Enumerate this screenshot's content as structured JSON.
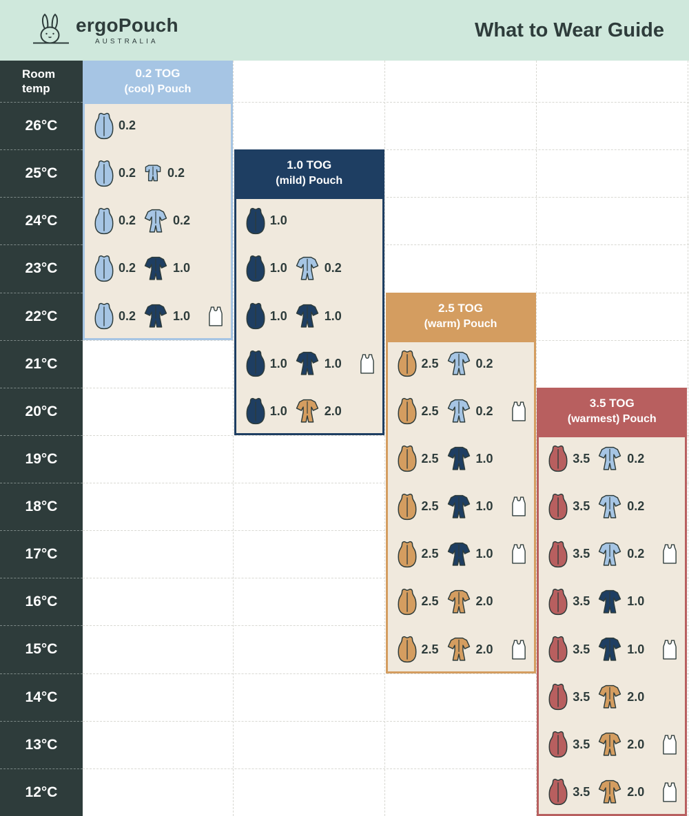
{
  "header": {
    "brand": "ergoPouch",
    "brand_sub": "AUSTRALIA",
    "title": "What to Wear Guide"
  },
  "palette": {
    "mint": "#cfe8dc",
    "dark": "#2e3c3b",
    "beige": "#f0e9dd",
    "lightblue": "#a6c5e4",
    "navy": "#1e3e62",
    "tan": "#d49d60",
    "red": "#b85f5f",
    "white": "#ffffff",
    "grid": "#d8d8d2"
  },
  "chart_data": {
    "type": "table",
    "title": "What to Wear Guide",
    "row_header": "Room temp",
    "temps": [
      "26°C",
      "25°C",
      "24°C",
      "23°C",
      "22°C",
      "21°C",
      "20°C",
      "19°C",
      "18°C",
      "17°C",
      "16°C",
      "15°C",
      "14°C",
      "13°C",
      "12°C"
    ],
    "panels": [
      {
        "name": "0.2 TOG (cool) Pouch",
        "title_line1": "0.2 TOG",
        "title_line2": "(cool) Pouch",
        "color_key": "lightblue",
        "rows": [
          {
            "temp": "26°C",
            "items": [
              {
                "icon": "sleep-bag",
                "color": "lightblue",
                "tog": "0.2"
              }
            ]
          },
          {
            "temp": "25°C",
            "items": [
              {
                "icon": "sleep-bag",
                "color": "lightblue",
                "tog": "0.2"
              },
              {
                "icon": "romper",
                "color": "lightblue",
                "tog": "0.2"
              }
            ]
          },
          {
            "temp": "24°C",
            "items": [
              {
                "icon": "sleep-bag",
                "color": "lightblue",
                "tog": "0.2"
              },
              {
                "icon": "onesie",
                "color": "lightblue",
                "tog": "0.2"
              }
            ]
          },
          {
            "temp": "23°C",
            "items": [
              {
                "icon": "sleep-bag",
                "color": "lightblue",
                "tog": "0.2"
              },
              {
                "icon": "onesie",
                "color": "navy",
                "tog": "1.0"
              }
            ]
          },
          {
            "temp": "22°C",
            "items": [
              {
                "icon": "sleep-bag",
                "color": "lightblue",
                "tog": "0.2"
              },
              {
                "icon": "onesie",
                "color": "navy",
                "tog": "1.0"
              },
              {
                "icon": "singlet",
                "color": "white"
              }
            ]
          }
        ]
      },
      {
        "name": "1.0 TOG (mild) Pouch",
        "title_line1": "1.0 TOG",
        "title_line2": "(mild) Pouch",
        "color_key": "navy",
        "rows": [
          {
            "temp": "24°C",
            "items": [
              {
                "icon": "sleep-bag",
                "color": "navy",
                "tog": "1.0"
              }
            ]
          },
          {
            "temp": "23°C",
            "items": [
              {
                "icon": "sleep-bag",
                "color": "navy",
                "tog": "1.0"
              },
              {
                "icon": "onesie",
                "color": "lightblue",
                "tog": "0.2"
              }
            ]
          },
          {
            "temp": "22°C",
            "items": [
              {
                "icon": "sleep-bag",
                "color": "navy",
                "tog": "1.0"
              },
              {
                "icon": "onesie",
                "color": "navy",
                "tog": "1.0"
              }
            ]
          },
          {
            "temp": "21°C",
            "items": [
              {
                "icon": "sleep-bag",
                "color": "navy",
                "tog": "1.0"
              },
              {
                "icon": "onesie",
                "color": "navy",
                "tog": "1.0"
              },
              {
                "icon": "singlet",
                "color": "white"
              }
            ]
          },
          {
            "temp": "20°C",
            "items": [
              {
                "icon": "sleep-bag",
                "color": "navy",
                "tog": "1.0"
              },
              {
                "icon": "onesie",
                "color": "tan",
                "tog": "2.0"
              }
            ]
          }
        ]
      },
      {
        "name": "2.5 TOG (warm) Pouch",
        "title_line1": "2.5 TOG",
        "title_line2": "(warm) Pouch",
        "color_key": "tan",
        "rows": [
          {
            "temp": "21°C",
            "items": [
              {
                "icon": "sleep-bag",
                "color": "tan",
                "tog": "2.5"
              },
              {
                "icon": "onesie",
                "color": "lightblue",
                "tog": "0.2"
              }
            ]
          },
          {
            "temp": "20°C",
            "items": [
              {
                "icon": "sleep-bag",
                "color": "tan",
                "tog": "2.5"
              },
              {
                "icon": "onesie",
                "color": "lightblue",
                "tog": "0.2"
              },
              {
                "icon": "singlet",
                "color": "white"
              }
            ]
          },
          {
            "temp": "19°C",
            "items": [
              {
                "icon": "sleep-bag",
                "color": "tan",
                "tog": "2.5"
              },
              {
                "icon": "onesie",
                "color": "navy",
                "tog": "1.0"
              }
            ]
          },
          {
            "temp": "18°C",
            "items": [
              {
                "icon": "sleep-bag",
                "color": "tan",
                "tog": "2.5"
              },
              {
                "icon": "onesie",
                "color": "navy",
                "tog": "1.0"
              },
              {
                "icon": "singlet",
                "color": "white"
              }
            ]
          },
          {
            "temp": "17°C",
            "items": [
              {
                "icon": "sleep-bag",
                "color": "tan",
                "tog": "2.5"
              },
              {
                "icon": "onesie",
                "color": "navy",
                "tog": "1.0"
              },
              {
                "icon": "singlet",
                "color": "white"
              }
            ]
          },
          {
            "temp": "16°C",
            "items": [
              {
                "icon": "sleep-bag",
                "color": "tan",
                "tog": "2.5"
              },
              {
                "icon": "onesie",
                "color": "tan",
                "tog": "2.0"
              }
            ]
          },
          {
            "temp": "15°C",
            "items": [
              {
                "icon": "sleep-bag",
                "color": "tan",
                "tog": "2.5"
              },
              {
                "icon": "onesie",
                "color": "tan",
                "tog": "2.0"
              },
              {
                "icon": "singlet",
                "color": "white"
              }
            ]
          }
        ]
      },
      {
        "name": "3.5 TOG (warmest) Pouch",
        "title_line1": "3.5 TOG",
        "title_line2": "(warmest) Pouch",
        "color_key": "red",
        "rows": [
          {
            "temp": "19°C",
            "items": [
              {
                "icon": "sleep-bag",
                "color": "red",
                "tog": "3.5"
              },
              {
                "icon": "onesie",
                "color": "lightblue",
                "tog": "0.2"
              }
            ]
          },
          {
            "temp": "18°C",
            "items": [
              {
                "icon": "sleep-bag",
                "color": "red",
                "tog": "3.5"
              },
              {
                "icon": "onesie",
                "color": "lightblue",
                "tog": "0.2"
              }
            ]
          },
          {
            "temp": "17°C",
            "items": [
              {
                "icon": "sleep-bag",
                "color": "red",
                "tog": "3.5"
              },
              {
                "icon": "onesie",
                "color": "lightblue",
                "tog": "0.2"
              },
              {
                "icon": "singlet",
                "color": "white"
              }
            ]
          },
          {
            "temp": "16°C",
            "items": [
              {
                "icon": "sleep-bag",
                "color": "red",
                "tog": "3.5"
              },
              {
                "icon": "onesie",
                "color": "navy",
                "tog": "1.0"
              }
            ]
          },
          {
            "temp": "15°C",
            "items": [
              {
                "icon": "sleep-bag",
                "color": "red",
                "tog": "3.5"
              },
              {
                "icon": "onesie",
                "color": "navy",
                "tog": "1.0"
              },
              {
                "icon": "singlet",
                "color": "white"
              }
            ]
          },
          {
            "temp": "14°C",
            "items": [
              {
                "icon": "sleep-bag",
                "color": "red",
                "tog": "3.5"
              },
              {
                "icon": "onesie",
                "color": "tan",
                "tog": "2.0"
              }
            ]
          },
          {
            "temp": "13°C",
            "items": [
              {
                "icon": "sleep-bag",
                "color": "red",
                "tog": "3.5"
              },
              {
                "icon": "onesie",
                "color": "tan",
                "tog": "2.0"
              },
              {
                "icon": "singlet",
                "color": "white"
              }
            ]
          },
          {
            "temp": "12°C",
            "items": [
              {
                "icon": "sleep-bag",
                "color": "red",
                "tog": "3.5"
              },
              {
                "icon": "onesie",
                "color": "tan",
                "tog": "2.0"
              },
              {
                "icon": "singlet",
                "color": "white"
              }
            ]
          }
        ]
      }
    ]
  }
}
